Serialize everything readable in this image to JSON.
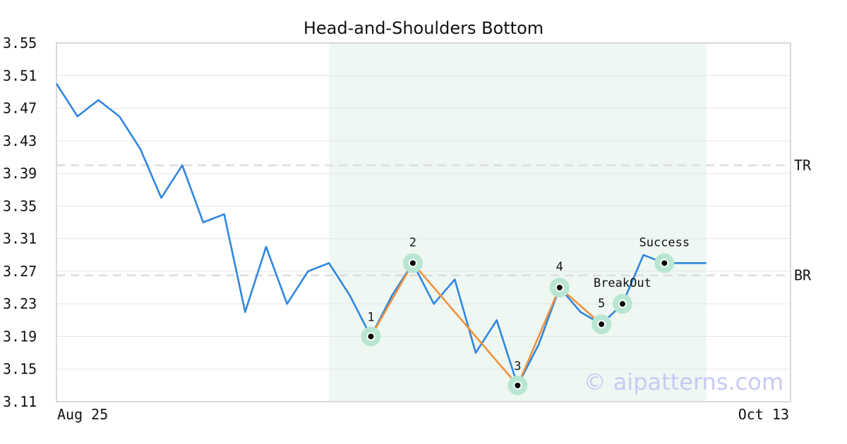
{
  "chart_data": {
    "type": "line",
    "title": "Head-and-Shoulders Bottom",
    "ylim": [
      3.11,
      3.55
    ],
    "y_ticks": [
      "3.55",
      "3.51",
      "3.47",
      "3.43",
      "3.39",
      "3.35",
      "3.31",
      "3.27",
      "3.23",
      "3.19",
      "3.15",
      "3.11"
    ],
    "x_tick_labels": [
      "Aug 25",
      "Oct 13"
    ],
    "x_range": [
      0,
      35
    ],
    "grid": true,
    "series": [
      {
        "color": "#2f86e0",
        "x": [
          0,
          1,
          2,
          3,
          4,
          5,
          6,
          7,
          8,
          9,
          10,
          11,
          12,
          13,
          14,
          15,
          16,
          17,
          18,
          19,
          20,
          21,
          22,
          23,
          24,
          25,
          26,
          27,
          28,
          29,
          30,
          31
        ],
        "y": [
          3.5,
          3.46,
          3.48,
          3.46,
          3.42,
          3.36,
          3.4,
          3.33,
          3.34,
          3.22,
          3.3,
          3.23,
          3.27,
          3.28,
          3.24,
          3.19,
          3.24,
          3.28,
          3.23,
          3.26,
          3.17,
          3.21,
          3.13,
          3.18,
          3.25,
          3.22,
          3.205,
          3.23,
          3.29,
          3.28,
          3.28,
          3.28
        ]
      }
    ],
    "pattern_line": {
      "color": "#f0923a",
      "x": [
        15,
        17,
        22,
        24,
        26
      ],
      "y": [
        3.19,
        3.28,
        3.13,
        3.25,
        3.205
      ]
    },
    "pattern_region": {
      "x_start": 13,
      "x_end": 31,
      "color": "#eef7f2"
    },
    "points": [
      {
        "label": "1",
        "x": 15,
        "y": 3.19
      },
      {
        "label": "2",
        "x": 17,
        "y": 3.28
      },
      {
        "label": "3",
        "x": 22,
        "y": 3.13
      },
      {
        "label": "4",
        "x": 24,
        "y": 3.25
      },
      {
        "label": "5",
        "x": 26,
        "y": 3.205
      },
      {
        "label": "BreakOut",
        "x": 27,
        "y": 3.23
      },
      {
        "label": "Success",
        "x": 29,
        "y": 3.28
      }
    ],
    "levels": [
      {
        "label": "TR",
        "y": 3.4
      },
      {
        "label": "BR",
        "y": 3.265
      }
    ],
    "marker_color": "#b9e6d3",
    "watermark": "© aipatterns.com"
  }
}
